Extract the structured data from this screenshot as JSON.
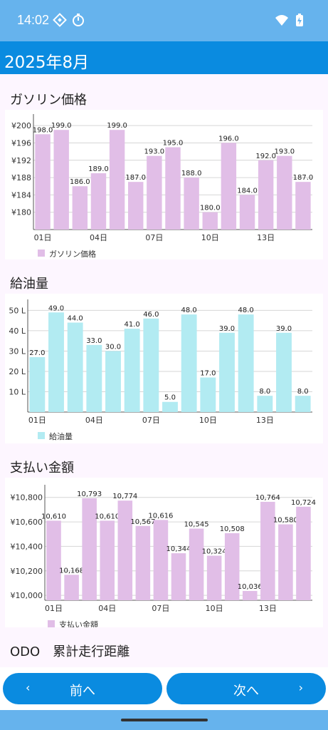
{
  "status_bar": {
    "time": "14:02"
  },
  "app_bar": {
    "title": "2025年8月"
  },
  "sections": {
    "gas_price": {
      "title": "ガソリン価格"
    },
    "fuel_amount": {
      "title": "給油量"
    },
    "payment": {
      "title": "支払い金額"
    },
    "odo": {
      "title": "ODO　累計走行距離"
    }
  },
  "nav": {
    "prev_label": "前へ",
    "next_label": "次へ",
    "prev_chevron": "‹",
    "next_chevron": "›"
  },
  "chart_data": [
    {
      "type": "bar",
      "title": "ガソリン価格",
      "categories": [
        "01日",
        "02日",
        "03日",
        "04日",
        "05日",
        "06日",
        "07日",
        "08日",
        "09日",
        "10日",
        "11日",
        "12日",
        "13日",
        "14日",
        "15日"
      ],
      "x_tick_labels": [
        "01日",
        "04日",
        "07日",
        "10日",
        "13日"
      ],
      "series": [
        {
          "name": "ガソリン価格",
          "values": [
            198.0,
            199.0,
            186.0,
            189.0,
            199.0,
            187.0,
            193.0,
            195.0,
            188.0,
            180.0,
            196.0,
            184.0,
            192.0,
            193.0,
            187.0
          ]
        }
      ],
      "value_labels": [
        "198.0",
        "199.0",
        "186.0",
        "189.0",
        "199.0",
        "187.0",
        "193.0",
        "195.0",
        "188.0",
        "180.0",
        "196.0",
        "184.0",
        "192.0",
        "193.0",
        "187.0"
      ],
      "y_ticks": [
        180,
        184,
        188,
        192,
        196,
        200
      ],
      "y_tick_labels": [
        "¥180",
        "¥184",
        "¥188",
        "¥192",
        "¥196",
        "¥200"
      ],
      "ylim": [
        176,
        202
      ],
      "grid": true,
      "legend": "bottom-left",
      "color": "#e1bee7"
    },
    {
      "type": "bar",
      "title": "給油量",
      "categories": [
        "01日",
        "02日",
        "03日",
        "04日",
        "05日",
        "06日",
        "07日",
        "08日",
        "09日",
        "10日",
        "11日",
        "12日",
        "13日",
        "14日",
        "15日"
      ],
      "x_tick_labels": [
        "01日",
        "04日",
        "07日",
        "10日",
        "13日"
      ],
      "series": [
        {
          "name": "給油量",
          "values": [
            27.0,
            49.0,
            44.0,
            33.0,
            30.0,
            41.0,
            46.0,
            5.0,
            48.0,
            17.0,
            39.0,
            48.0,
            8.0,
            39.0,
            8.0
          ]
        }
      ],
      "value_labels": [
        "27.0",
        "49.0",
        "44.0",
        "33.0",
        "30.0",
        "41.0",
        "46.0",
        "5.0",
        "48.0",
        "17.0",
        "39.0",
        "48.0",
        "8.0",
        "39.0",
        "8.0"
      ],
      "y_ticks": [
        10,
        20,
        30,
        40,
        50
      ],
      "y_tick_labels": [
        "10 L",
        "20 L",
        "30 L",
        "40 L",
        "50 L"
      ],
      "ylim": [
        0,
        54
      ],
      "grid": true,
      "legend": "bottom-left",
      "color": "#b2ebf2"
    },
    {
      "type": "bar",
      "title": "支払い金額",
      "categories": [
        "01日",
        "02日",
        "03日",
        "04日",
        "05日",
        "06日",
        "07日",
        "08日",
        "09日",
        "10日",
        "11日",
        "12日",
        "13日",
        "14日",
        "15日"
      ],
      "x_tick_labels": [
        "01日",
        "04日",
        "07日",
        "10日",
        "13日"
      ],
      "series": [
        {
          "name": "支払い金額",
          "values": [
            10610,
            10168,
            10793,
            10610,
            10774,
            10567,
            10616,
            10344,
            10545,
            10324,
            10508,
            10036,
            10764,
            10580,
            10724
          ]
        }
      ],
      "value_labels": [
        "10,610",
        "10,168",
        "10,793",
        "10,610",
        "10,774",
        "10,567",
        "10,616",
        "10,344",
        "10,545",
        "10,324",
        "10,508",
        "10,036",
        "10,764",
        "10,580",
        "10,724"
      ],
      "y_ticks": [
        10000,
        10200,
        10400,
        10600,
        10800
      ],
      "y_tick_labels": [
        "¥10,000",
        "¥10,200",
        "¥10,400",
        "¥10,600",
        "¥10,800"
      ],
      "ylim": [
        9960,
        10880
      ],
      "grid": true,
      "legend": "bottom-left",
      "color": "#e1bee7"
    }
  ]
}
